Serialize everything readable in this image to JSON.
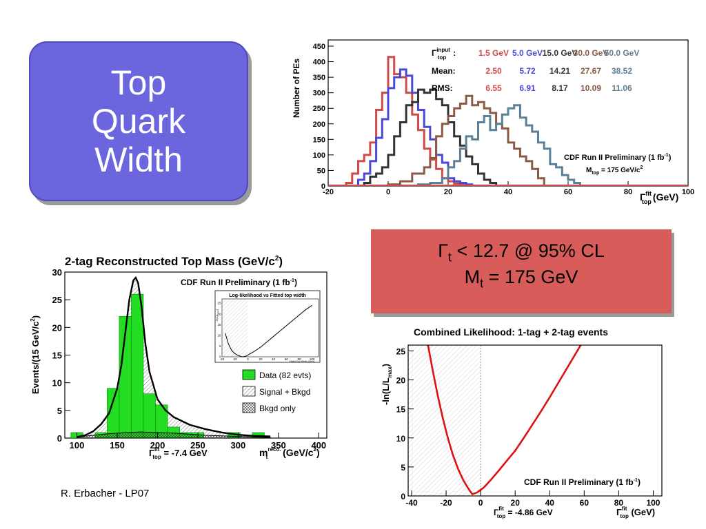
{
  "slide": {
    "title_lines": [
      "Top",
      "Quark",
      "Width"
    ],
    "result_line1": "Γₜ < 12.7 @ 95% CL",
    "result_line2": "Mₜ =  175 GeV",
    "result_gamma": "Γ",
    "result_gamma_sub": "t",
    "result_l1_rest": " < 12.7 @ 95% CL",
    "result_m": "M",
    "result_m_sub": "t",
    "result_l2_rest": " =  175 GeV",
    "author": "R. Erbacher - LP07"
  },
  "chart_data": [
    {
      "type": "line",
      "name": "pe-histograms",
      "ylabel": "Number of PEs",
      "xlabel": "Γ",
      "xlabel_sup": "fit",
      "xlabel_sub": "top",
      "xlabel_unit": "(GeV)",
      "xlim": [
        -20,
        100
      ],
      "ylim": [
        0,
        470
      ],
      "xticks": [
        -20,
        0,
        20,
        40,
        60,
        80,
        100
      ],
      "yticks": [
        0,
        50,
        100,
        150,
        200,
        250,
        300,
        350,
        400,
        450
      ],
      "legend_header": "Γ",
      "legend_header_sup": "input",
      "legend_header_sub": "top",
      "row_labels": [
        "Mean:",
        "RMS:"
      ],
      "annotation_line1": "CDF Run II Preliminary (1 fb",
      "annotation_line1_sup": "-1",
      "annotation_line1_end": ")",
      "annotation_line2": "M",
      "annotation_line2_sub": "top",
      "annotation_line2_end": " = 175 GeV/c",
      "annotation_line2_sup": "2",
      "series": [
        {
          "name": "1.5 GeV",
          "color": "#d14a48",
          "mean": "2.50",
          "rms": "6.55",
          "x": [
            -14,
            -12,
            -10,
            -8,
            -6,
            -4,
            -2,
            0,
            2,
            4,
            6,
            8,
            10,
            12,
            14,
            16,
            18,
            20,
            22,
            24
          ],
          "values": [
            10,
            40,
            80,
            100,
            140,
            245,
            300,
            415,
            360,
            350,
            300,
            230,
            180,
            120,
            85,
            55,
            25,
            15,
            8,
            3
          ]
        },
        {
          "name": "5.0 GeV",
          "color": "#4a48d6",
          "mean": "5.72",
          "rms": "6.91",
          "x": [
            -10,
            -8,
            -6,
            -4,
            -2,
            0,
            2,
            4,
            6,
            8,
            10,
            12,
            14,
            16,
            18,
            20,
            22,
            24,
            26
          ],
          "values": [
            20,
            40,
            80,
            155,
            215,
            315,
            350,
            375,
            355,
            300,
            245,
            190,
            150,
            100,
            75,
            25,
            15,
            10,
            5
          ]
        },
        {
          "name": "15.0 GeV",
          "color": "#333333",
          "mean": "14.21",
          "rms": "8.17",
          "x": [
            -8,
            -6,
            -4,
            -2,
            0,
            2,
            4,
            6,
            8,
            10,
            12,
            14,
            16,
            18,
            20,
            22,
            24,
            26,
            28,
            30,
            32,
            34
          ],
          "values": [
            10,
            30,
            40,
            60,
            100,
            160,
            205,
            260,
            270,
            310,
            300,
            310,
            280,
            260,
            205,
            160,
            130,
            95,
            70,
            40,
            20,
            10
          ]
        },
        {
          "name": "30.0 GeV",
          "color": "#8a5a44",
          "mean": "27.67",
          "rms": "10.09",
          "x": [
            0,
            4,
            8,
            12,
            14,
            16,
            18,
            20,
            22,
            24,
            26,
            28,
            30,
            32,
            34,
            36,
            38,
            40,
            42,
            44,
            46,
            48,
            50
          ],
          "values": [
            5,
            15,
            40,
            60,
            90,
            160,
            200,
            225,
            250,
            265,
            290,
            260,
            270,
            250,
            235,
            200,
            185,
            140,
            120,
            95,
            80,
            55,
            25
          ]
        },
        {
          "name": "50.0 GeV",
          "color": "#5a7f96",
          "mean": "38.52",
          "rms": "11.06",
          "x": [
            10,
            14,
            18,
            20,
            22,
            24,
            26,
            28,
            30,
            32,
            34,
            36,
            38,
            40,
            42,
            44,
            46,
            48,
            50,
            52,
            54,
            56,
            58,
            60,
            62
          ],
          "values": [
            5,
            10,
            25,
            60,
            80,
            120,
            160,
            150,
            205,
            225,
            180,
            200,
            230,
            250,
            260,
            220,
            195,
            175,
            140,
            120,
            70,
            60,
            35,
            20,
            10
          ]
        }
      ]
    },
    {
      "type": "bar",
      "name": "reconstructed-top-mass",
      "title": "2-tag Reconstructed Top Mass (GeV/c",
      "title_sup": "2",
      "title_end": ")",
      "ylabel": "Events/(15 GeV/c",
      "ylabel_sup": "2",
      "ylabel_end": ")",
      "xlabel": "m",
      "xlabel_sup": "reco.",
      "xlabel_sub": "t",
      "xlabel_unit": " (GeV/c",
      "xlabel_unit_sup": "2",
      "xlabel_unit_end": ")",
      "fit_label": "Γ",
      "fit_label_sup": "fit",
      "fit_label_sub": "top",
      "fit_label_value": " = -7.4 GeV",
      "annotation": "CDF Run II Preliminary (1 fb",
      "annotation_sup": "-1",
      "annotation_end": ")",
      "xlim": [
        85,
        410
      ],
      "ylim": [
        0,
        30
      ],
      "xticks": [
        100,
        150,
        200,
        250,
        300,
        350,
        400
      ],
      "yticks": [
        0,
        5,
        10,
        15,
        20,
        25,
        30
      ],
      "bins": [
        [
          92.5,
          107.5
        ],
        [
          107.5,
          122.5
        ],
        [
          122.5,
          137.5
        ],
        [
          137.5,
          152.5
        ],
        [
          152.5,
          167.5
        ],
        [
          167.5,
          182.5
        ],
        [
          182.5,
          197.5
        ],
        [
          197.5,
          212.5
        ],
        [
          212.5,
          227.5
        ],
        [
          227.5,
          242.5
        ],
        [
          242.5,
          257.5
        ],
        [
          257.5,
          272.5
        ],
        [
          272.5,
          287.5
        ],
        [
          287.5,
          302.5
        ],
        [
          302.5,
          317.5
        ],
        [
          317.5,
          332.5
        ]
      ],
      "data_values": [
        1,
        0,
        1,
        9,
        22,
        26,
        8,
        6,
        2,
        1,
        1,
        0,
        0,
        1,
        0,
        1
      ],
      "fit_x": [
        100,
        110,
        120,
        130,
        140,
        150,
        155,
        160,
        165,
        170,
        173,
        176,
        180,
        185,
        190,
        200,
        210,
        220,
        240,
        260,
        280,
        300,
        320,
        340
      ],
      "fit_y": [
        0.2,
        0.5,
        1.2,
        2.5,
        4.5,
        9,
        13,
        19,
        25,
        28.5,
        29,
        28,
        24,
        17,
        12,
        7,
        5,
        3.8,
        2.4,
        1.6,
        1.0,
        0.6,
        0.4,
        0.3
      ],
      "bkgd_x": [
        100,
        120,
        140,
        160,
        180,
        200,
        220,
        240,
        260,
        280,
        300,
        320,
        340
      ],
      "bkgd_y": [
        0.2,
        0.5,
        0.8,
        1.0,
        1.1,
        1.0,
        0.9,
        0.7,
        0.5,
        0.4,
        0.3,
        0.2,
        0.1
      ],
      "legend": [
        "Data (82 evts)",
        "Signal + Bkgd",
        "Bkgd only"
      ],
      "colors": {
        "data": "#22dd22",
        "fit": "#000000"
      },
      "inset": {
        "title": "Log-likelihood vs Fitted top width",
        "xlabel": "Fitted Top Width (GeV)",
        "ylabel": "-ln(L/L",
        "ylabel_sub": "max",
        "ylabel_end": ")",
        "xticks": [
          -40,
          -20,
          0,
          20,
          40,
          60,
          80,
          100
        ],
        "yticks": [
          0,
          5,
          10,
          15,
          20,
          25
        ],
        "xlim": [
          -40,
          110
        ],
        "ylim": [
          0,
          27
        ],
        "x": [
          -35,
          -30,
          -25,
          -20,
          -15,
          -10,
          -7,
          -3,
          0,
          10,
          20,
          30,
          40,
          50,
          60,
          70,
          80,
          90,
          100
        ],
        "y": [
          11,
          6,
          3,
          1.5,
          0.6,
          0.1,
          0,
          0.3,
          0.8,
          2.5,
          4.5,
          7,
          9.5,
          12,
          14.5,
          17,
          19.5,
          22,
          24
        ]
      }
    },
    {
      "type": "line",
      "name": "combined-likelihood",
      "title": "Combined Likelihood: 1-tag + 2-tag events",
      "ylabel": "-ln(L/L",
      "ylabel_sub": "max",
      "ylabel_end": ")",
      "xlabel": "Γ",
      "xlabel_sup": "fit",
      "xlabel_sub": "top",
      "xlabel_unit": " (GeV)",
      "fit_label": "Γ",
      "fit_label_sup": "fit",
      "fit_label_sub": "top",
      "fit_label_value": " = -4.86 GeV",
      "annotation": "CDF Run II Preliminary (1 fb",
      "annotation_sup": "-1",
      "annotation_end": ")",
      "xlim": [
        -42,
        105
      ],
      "ylim": [
        0,
        26
      ],
      "xticks": [
        -40,
        -20,
        0,
        20,
        40,
        60,
        80,
        100
      ],
      "yticks": [
        0,
        5,
        10,
        15,
        20,
        25
      ],
      "x": [
        -30.5,
        -28,
        -25,
        -22,
        -19,
        -16,
        -13,
        -10,
        -7,
        -4.86,
        -2,
        2,
        6,
        10,
        15,
        20,
        25,
        30,
        35,
        40,
        45,
        50,
        55,
        58
      ],
      "y": [
        26,
        22,
        17.5,
        13.5,
        10,
        7,
        4.6,
        2.7,
        1.2,
        0.3,
        0.6,
        1.5,
        2.8,
        4.2,
        6,
        7.8,
        10,
        12.3,
        14.6,
        17,
        19.5,
        22,
        24.5,
        26
      ],
      "color": "#dd1111"
    }
  ]
}
